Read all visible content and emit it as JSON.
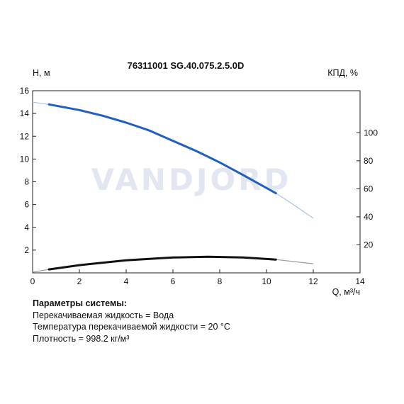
{
  "watermark": "VANDJORD",
  "chart_data": {
    "type": "line",
    "title": "76311001 SG.40.075.2.5.0D",
    "xlabel": "Q, м³/ч",
    "ylabel_left": "Н, м",
    "ylabel_right": "КПД, %",
    "xlim": [
      0,
      14
    ],
    "ylim_left": [
      0,
      16
    ],
    "ylim_right": [
      0,
      130
    ],
    "x_ticks": [
      "0",
      "2",
      "4",
      "6",
      "8",
      "10",
      "12",
      "14"
    ],
    "y_left_ticks": [
      "2",
      "4",
      "6",
      "8",
      "10",
      "12",
      "14",
      "16"
    ],
    "y_right_ticks": [
      "20",
      "40",
      "60",
      "80",
      "100"
    ],
    "grid": false,
    "series": [
      {
        "axis": "left",
        "color": "#1f5fbf",
        "extension_color": "#a9c3e6",
        "points": [
          [
            0.7,
            14.8
          ],
          [
            2.0,
            14.3
          ],
          [
            3.0,
            13.8
          ],
          [
            4.0,
            13.2
          ],
          [
            5.0,
            12.5
          ],
          [
            6.0,
            11.6
          ],
          [
            7.0,
            10.7
          ],
          [
            8.0,
            9.7
          ],
          [
            9.0,
            8.6
          ],
          [
            10.4,
            7.0
          ]
        ],
        "extension_start": [
          [
            0,
            15.0
          ],
          [
            0.7,
            14.8
          ]
        ],
        "extension_end": [
          [
            10.4,
            7.0
          ],
          [
            11.0,
            6.2
          ],
          [
            12.0,
            4.8
          ]
        ]
      },
      {
        "axis": "right",
        "color": "#111111",
        "extension_color": "#9a9a9a",
        "points": [
          [
            0.7,
            2.5
          ],
          [
            2.0,
            5.5
          ],
          [
            4.0,
            9.0
          ],
          [
            6.0,
            11.0
          ],
          [
            7.5,
            11.5
          ],
          [
            9.0,
            11.0
          ],
          [
            10.4,
            9.5
          ]
        ],
        "extension_start": [
          [
            0,
            0.5
          ],
          [
            0.7,
            2.5
          ]
        ],
        "extension_end": [
          [
            10.4,
            9.5
          ],
          [
            12.0,
            6.5
          ]
        ]
      }
    ]
  },
  "params": {
    "heading": "Параметры системы:",
    "lines": [
      "Перекачиваемая жидкость = Вода",
      "Температура перекачиваемой жидкости = 20 °C",
      "Плотность = 998.2 кг/м³"
    ]
  }
}
